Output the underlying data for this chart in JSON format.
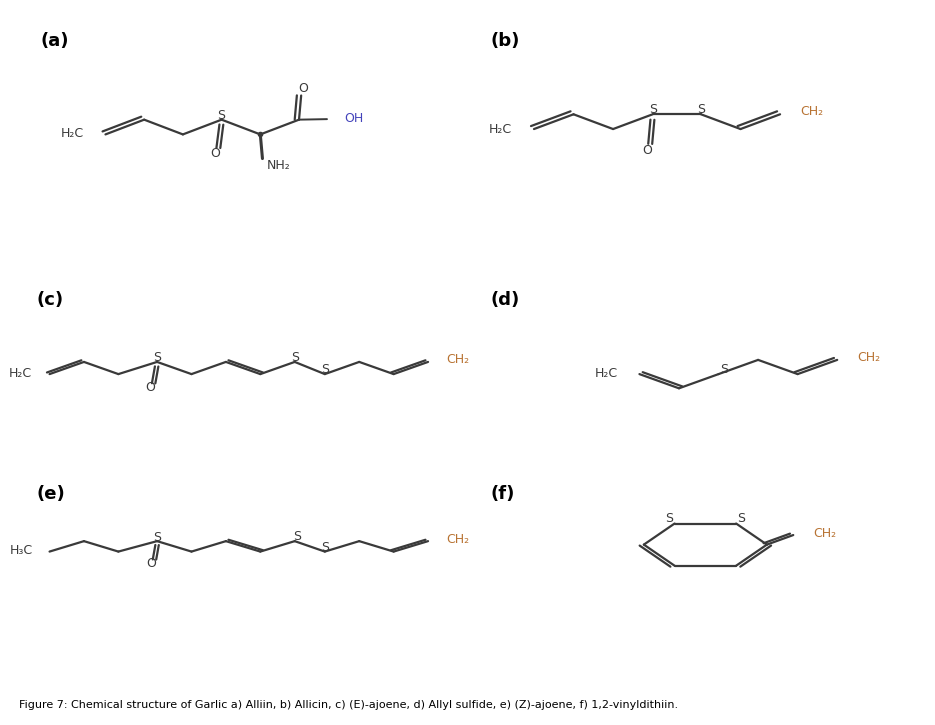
{
  "bg_color": "#ffffff",
  "bond_color": "#3a3a3a",
  "orange_color": "#b87333",
  "blue_color": "#4444bb",
  "black_color": "#000000",
  "fig_caption": "Figure 7: Chemical structure of Garlic a) Alliin, b) Allicin, c) (E)-ajoene, d) Allyl sulfide, e) (Z)-ajoene, f) 1,2-vinyldithiin.",
  "panel_labels": [
    "(a)",
    "(b)",
    "(c)",
    "(d)",
    "(e)",
    "(f)"
  ]
}
